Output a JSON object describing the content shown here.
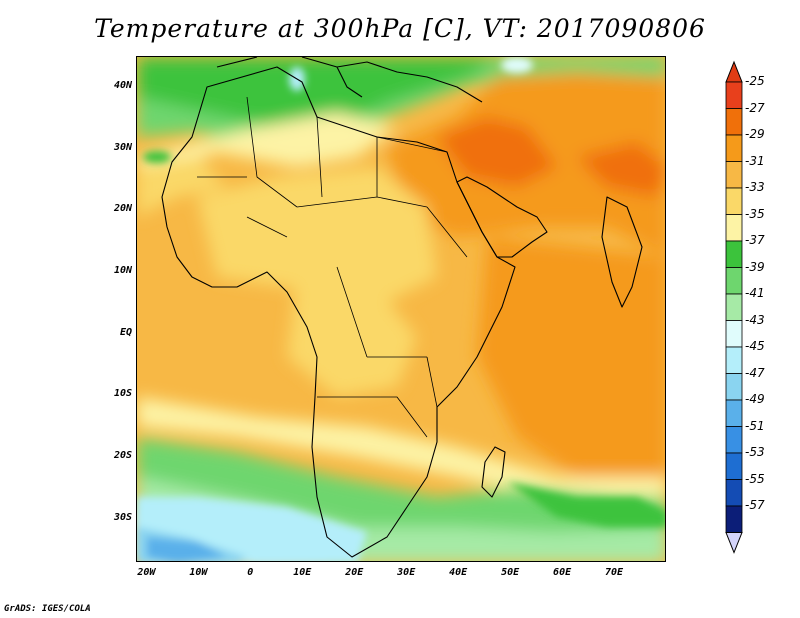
{
  "title": "Temperature at 300hPa [C], VT: 2017090806",
  "credit": "GrADS: IGES/COLA",
  "map": {
    "lon_range": [
      -22,
      80
    ],
    "lat_range": [
      -37,
      45
    ],
    "lat_labels": [
      {
        "lat": 40,
        "text": "40N"
      },
      {
        "lat": 30,
        "text": "30N"
      },
      {
        "lat": 20,
        "text": "20N"
      },
      {
        "lat": 10,
        "text": "10N"
      },
      {
        "lat": 0,
        "text": "EQ"
      },
      {
        "lat": -10,
        "text": "10S"
      },
      {
        "lat": -20,
        "text": "20S"
      },
      {
        "lat": -30,
        "text": "30S"
      }
    ],
    "lon_labels": [
      {
        "lon": -20,
        "text": "20W"
      },
      {
        "lon": -10,
        "text": "10W"
      },
      {
        "lon": 0,
        "text": "0"
      },
      {
        "lon": 10,
        "text": "10E"
      },
      {
        "lon": 20,
        "text": "20E"
      },
      {
        "lon": 30,
        "text": "30E"
      },
      {
        "lon": 40,
        "text": "40E"
      },
      {
        "lon": 50,
        "text": "50E"
      },
      {
        "lon": 60,
        "text": "60E"
      },
      {
        "lon": 70,
        "text": "70E"
      }
    ]
  },
  "colorbar": {
    "labels": [
      "-25",
      "-27",
      "-29",
      "-31",
      "-33",
      "-35",
      "-37",
      "-39",
      "-41",
      "-43",
      "-45",
      "-47",
      "-49",
      "-51",
      "-53",
      "-55",
      "-57"
    ],
    "colors": [
      "#e8401c",
      "#f0700a",
      "#f59a1a",
      "#f7b845",
      "#fad868",
      "#fdf3a5",
      "#3cc33c",
      "#6ed66e",
      "#a6eaa6",
      "#e0fcfc",
      "#b4eefa",
      "#8ad4f0",
      "#5ab0ea",
      "#3890e4",
      "#1e6ed2",
      "#144cb4",
      "#0c1e78"
    ],
    "top_cap_color": "#e03c14",
    "bottom_cap_color": "#d4d4fa"
  },
  "colors": {
    "ocean_base": "#f7b845",
    "coastline": "#000000"
  }
}
